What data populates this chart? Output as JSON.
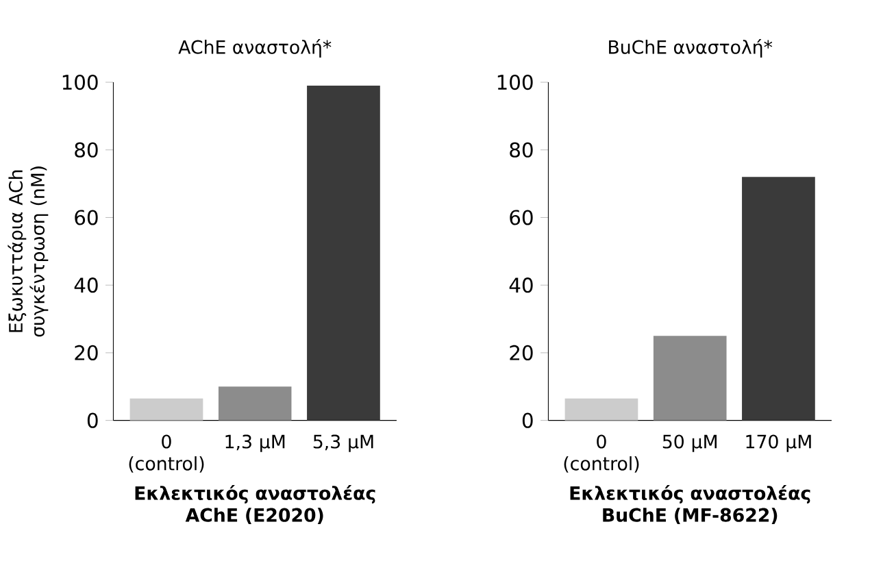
{
  "chart_data": [
    {
      "type": "bar",
      "title": "AChE αναστολή*",
      "xlabel": "Εκλεκτικός αναστολέας AChE (E2020)",
      "ylabel": "Εξωκυττάρια ACh συγκέντρωση (nM)",
      "categories": [
        "0 (control)",
        "1,3 μM",
        "5,3 μM"
      ],
      "values": [
        6.5,
        10,
        99
      ],
      "colors": [
        "#cccccc",
        "#8c8c8c",
        "#3a3a3a"
      ],
      "ylim": [
        0,
        100
      ],
      "yticks": [
        0,
        20,
        40,
        60,
        80,
        100
      ]
    },
    {
      "type": "bar",
      "title": "BuChE αναστολή*",
      "xlabel": "Εκλεκτικός αναστολέας BuChE (MF-8622)",
      "categories": [
        "0 (control)",
        "50 μM",
        "170 μM"
      ],
      "values": [
        6.5,
        25,
        72
      ],
      "colors": [
        "#cccccc",
        "#8c8c8c",
        "#3a3a3a"
      ],
      "ylim": [
        0,
        100
      ],
      "yticks": [
        0,
        20,
        40,
        60,
        80,
        100
      ]
    }
  ]
}
